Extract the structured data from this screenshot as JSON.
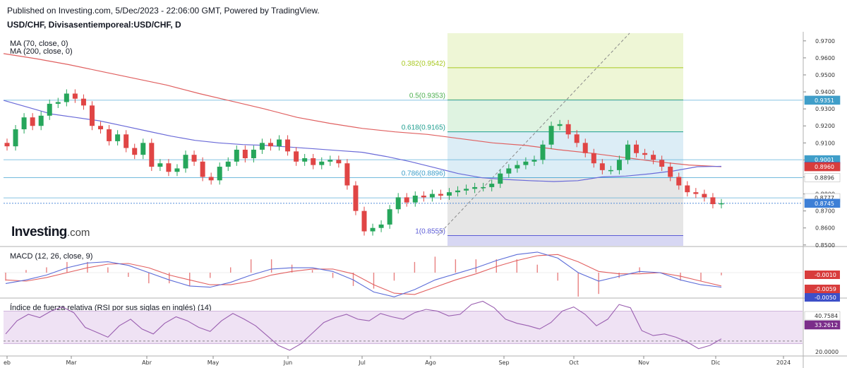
{
  "header": {
    "published": "Published on Investing.com, 5/Dec/2023 - 22:06:00 GMT, Powered by TradingView.",
    "symbol": "USD/CHF, Divisasentiemporeal:USD/CHF, D"
  },
  "legend": {
    "ma70": "MA (70, close, 0)",
    "ma200": "MA (200, close, 0)"
  },
  "logo": {
    "main": "Investing",
    "suffix": ".com"
  },
  "colors": {
    "ma70": "#6a6ad8",
    "ma200": "#e06060",
    "up": "#26a65b",
    "down": "#e04545",
    "macd": "#5b6cd8",
    "signal": "#e26060",
    "rsi": "#9a5fb0",
    "grid": "#e6e6e6"
  },
  "chart_data": [
    {
      "type": "candlestick",
      "title": "USD/CHF, Divisasentiemporeal:USD/CHF, D",
      "x_ticks": [
        "eb",
        "Mar",
        "Abr",
        "May",
        "Jun",
        "Jul",
        "Ago",
        "Sep",
        "Oct",
        "Nov",
        "Dic",
        "2024"
      ],
      "y_ticks": [
        "0.9700",
        "0.9600",
        "0.9500",
        "0.9400",
        "0.9300",
        "0.9200",
        "0.9100",
        "0.9000",
        "0.8900",
        "0.8800",
        "0.8700",
        "0.8600",
        "0.8500"
      ],
      "ylim": [
        0.8495,
        0.9745
      ],
      "series": [
        {
          "name": "MA (70, close, 0)",
          "values": [
            0.935,
            0.931,
            0.927,
            0.925,
            0.923,
            0.92,
            0.917,
            0.914,
            0.9115,
            0.91,
            0.909,
            0.9085,
            0.9075,
            0.9065,
            0.9055,
            0.9045,
            0.902,
            0.899,
            0.8955,
            0.892,
            0.8895,
            0.8885,
            0.8878,
            0.8873,
            0.8878,
            0.89,
            0.8905,
            0.8918,
            0.8935,
            0.896,
            0.8962
          ]
        },
        {
          "name": "MA (200, close, 0)",
          "values": [
            0.9625,
            0.9595,
            0.956,
            0.952,
            0.948,
            0.944,
            0.939,
            0.9345,
            0.93,
            0.925,
            0.9215,
            0.9185,
            0.9165,
            0.915,
            0.9125,
            0.91,
            0.9085,
            0.906,
            0.904,
            0.9015,
            0.899,
            0.897,
            0.896
          ]
        }
      ],
      "closes": [
        0.908,
        0.918,
        0.925,
        0.92,
        0.926,
        0.933,
        0.934,
        0.939,
        0.936,
        0.932,
        0.92,
        0.918,
        0.911,
        0.915,
        0.907,
        0.903,
        0.91,
        0.896,
        0.898,
        0.893,
        0.895,
        0.903,
        0.899,
        0.89,
        0.888,
        0.896,
        0.899,
        0.906,
        0.901,
        0.906,
        0.91,
        0.908,
        0.912,
        0.905,
        0.899,
        0.901,
        0.897,
        0.899,
        0.9,
        0.898,
        0.885,
        0.87,
        0.858,
        0.86,
        0.862,
        0.871,
        0.878,
        0.875,
        0.879,
        0.878,
        0.88,
        0.879,
        0.881,
        0.882,
        0.883,
        0.884,
        0.884,
        0.886,
        0.892,
        0.895,
        0.897,
        0.899,
        0.9,
        0.909,
        0.92,
        0.921,
        0.915,
        0.91,
        0.904,
        0.898,
        0.894,
        0.894,
        0.9,
        0.909,
        0.904,
        0.903,
        0.9,
        0.896,
        0.89,
        0.885,
        0.881,
        0.88,
        0.878,
        0.874,
        0.8745
      ],
      "current_price": 0.8745,
      "price_labels": [
        {
          "label": "0.9351",
          "value": 0.9351,
          "color": "#3f9ec9"
        },
        {
          "label": "0.9001",
          "value": 0.9001,
          "color": "#3f9ec9"
        },
        {
          "label": "0.8962",
          "value": 0.8962,
          "color": "#3d4fc8"
        },
        {
          "label": "0.8960",
          "value": 0.896,
          "color": "#d83c3c"
        },
        {
          "label": "0.8896",
          "value": 0.8896,
          "color": "#ffffff"
        },
        {
          "label": "0.8777",
          "value": 0.8777,
          "color": "#ffffff"
        },
        {
          "label": "0.8745",
          "value": 0.8745,
          "color": "#3d7fd6"
        }
      ],
      "horizontal_lines": [
        0.9351,
        0.9001,
        0.8896,
        0.8777
      ],
      "fibonacci": {
        "levels": [
          {
            "ratio": "0.382",
            "value": 0.9542,
            "label": "0.382(0.9542)",
            "color": "#a8c820"
          },
          {
            "ratio": "0.5",
            "value": 0.9353,
            "label": "0.5(0.9353)",
            "color": "#4caf50"
          },
          {
            "ratio": "0.618",
            "value": 0.9165,
            "label": "0.618(0.9165)",
            "color": "#1e9e8f"
          },
          {
            "ratio": "0.786",
            "value": 0.8896,
            "label": "0.786(0.8896)",
            "color": "#3d9ec9"
          },
          {
            "ratio": "1",
            "value": 0.8555,
            "label": "1(0.8555)",
            "color": "#5c5cd6"
          }
        ],
        "zones": [
          "#eef6d6",
          "#dff3e1",
          "#dcedf6",
          "#e6e6e6",
          "#d7d7f3"
        ]
      }
    },
    {
      "type": "line",
      "title": "MACD (12, 26, close, 9)",
      "series": [
        {
          "name": "MACD",
          "values": [
            -0.0045,
            -0.003,
            -0.001,
            0.002,
            0.004,
            0.0045,
            0.003,
            0.0,
            -0.003,
            -0.0055,
            -0.006,
            -0.004,
            -0.001,
            0.0015,
            0.002,
            0.002,
            0.0005,
            -0.003,
            -0.008,
            -0.01,
            -0.007,
            -0.003,
            -0.0005,
            0.002,
            0.005,
            0.0075,
            0.0085,
            0.006,
            0.0,
            -0.0035,
            -0.0015,
            0.0005,
            0.0,
            -0.003,
            -0.005,
            -0.006
          ]
        },
        {
          "name": "Signal",
          "values": [
            -0.003,
            -0.0035,
            -0.002,
            0.0,
            0.002,
            0.0035,
            0.0038,
            0.002,
            -0.001,
            -0.003,
            -0.005,
            -0.005,
            -0.0035,
            -0.001,
            0.0005,
            0.0015,
            0.0015,
            -0.0005,
            -0.005,
            -0.0085,
            -0.009,
            -0.006,
            -0.003,
            -0.0005,
            0.0025,
            0.005,
            0.007,
            0.0075,
            0.0045,
            0.0005,
            -0.0005,
            -0.0005,
            0.0,
            -0.0015,
            -0.0035,
            -0.0055
          ]
        }
      ],
      "value_labels": [
        {
          "label": "-0.0010",
          "value": -0.001,
          "color": "#d83c3c"
        },
        {
          "label": "-0.0059",
          "value": -0.0059,
          "color": "#d83c3c"
        },
        {
          "label": "-0.0050",
          "value": -0.005,
          "color": "#3d4fc8"
        }
      ]
    },
    {
      "type": "line",
      "title": "Índice de fuerza relativa (RSI por sus siglas en inglés) (14)",
      "ylim": [
        15,
        85
      ],
      "y_ticks": [
        "20.0000"
      ],
      "series": [
        {
          "name": "RSI",
          "values": [
            42,
            58,
            66,
            62,
            70,
            75,
            68,
            50,
            44,
            38,
            52,
            60,
            48,
            42,
            55,
            63,
            58,
            50,
            45,
            58,
            67,
            60,
            52,
            40,
            28,
            22,
            30,
            43,
            56,
            62,
            66,
            60,
            58,
            67,
            63,
            60,
            68,
            72,
            70,
            64,
            66,
            78,
            82,
            74,
            60,
            55,
            52,
            48,
            56,
            70,
            75,
            66,
            52,
            60,
            78,
            74,
            46,
            40,
            42,
            38,
            32,
            24,
            28,
            36
          ]
        }
      ],
      "value_labels": [
        {
          "label": "40.7584",
          "value": 40.7584,
          "color": "#ffffff"
        },
        {
          "label": "33.2612",
          "value": 33.2612,
          "color": "#7b2d8a"
        }
      ]
    }
  ]
}
